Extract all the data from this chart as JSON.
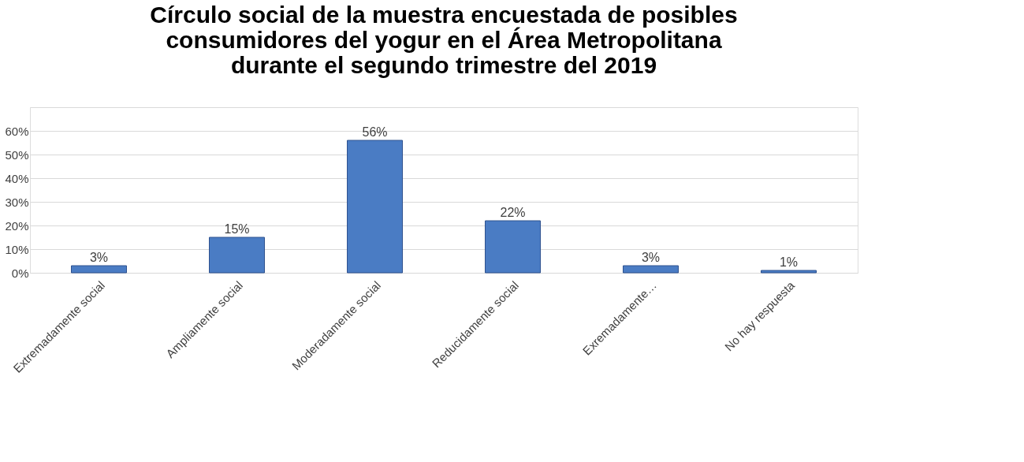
{
  "chart_data": {
    "type": "bar",
    "title": [
      "Círculo social de la muestra encuestada de posibles",
      "consumidores del yogur en el Área Metropolitana",
      "durante el segundo trimestre del 2019"
    ],
    "categories": [
      "Extremadamente social",
      "Ampliamente social",
      "Moderadamente social",
      "Reducidamente social",
      "Exremadamente…",
      "No hay respuesta"
    ],
    "values": [
      3,
      15,
      56,
      22,
      3,
      1
    ],
    "value_labels": [
      "3%",
      "15%",
      "56%",
      "22%",
      "3%",
      "1%"
    ],
    "color": "#4a7cc4",
    "ylim": [
      0,
      70
    ],
    "yticks": [
      {
        "value": 0,
        "label": "0%"
      },
      {
        "value": 10,
        "label": "10%"
      },
      {
        "value": 20,
        "label": "20%"
      },
      {
        "value": 30,
        "label": "30%"
      },
      {
        "value": 40,
        "label": "40%"
      },
      {
        "value": 50,
        "label": "50%"
      },
      {
        "value": 60,
        "label": "60%"
      },
      {
        "value": 70,
        "label": null
      }
    ],
    "grid": "y"
  }
}
